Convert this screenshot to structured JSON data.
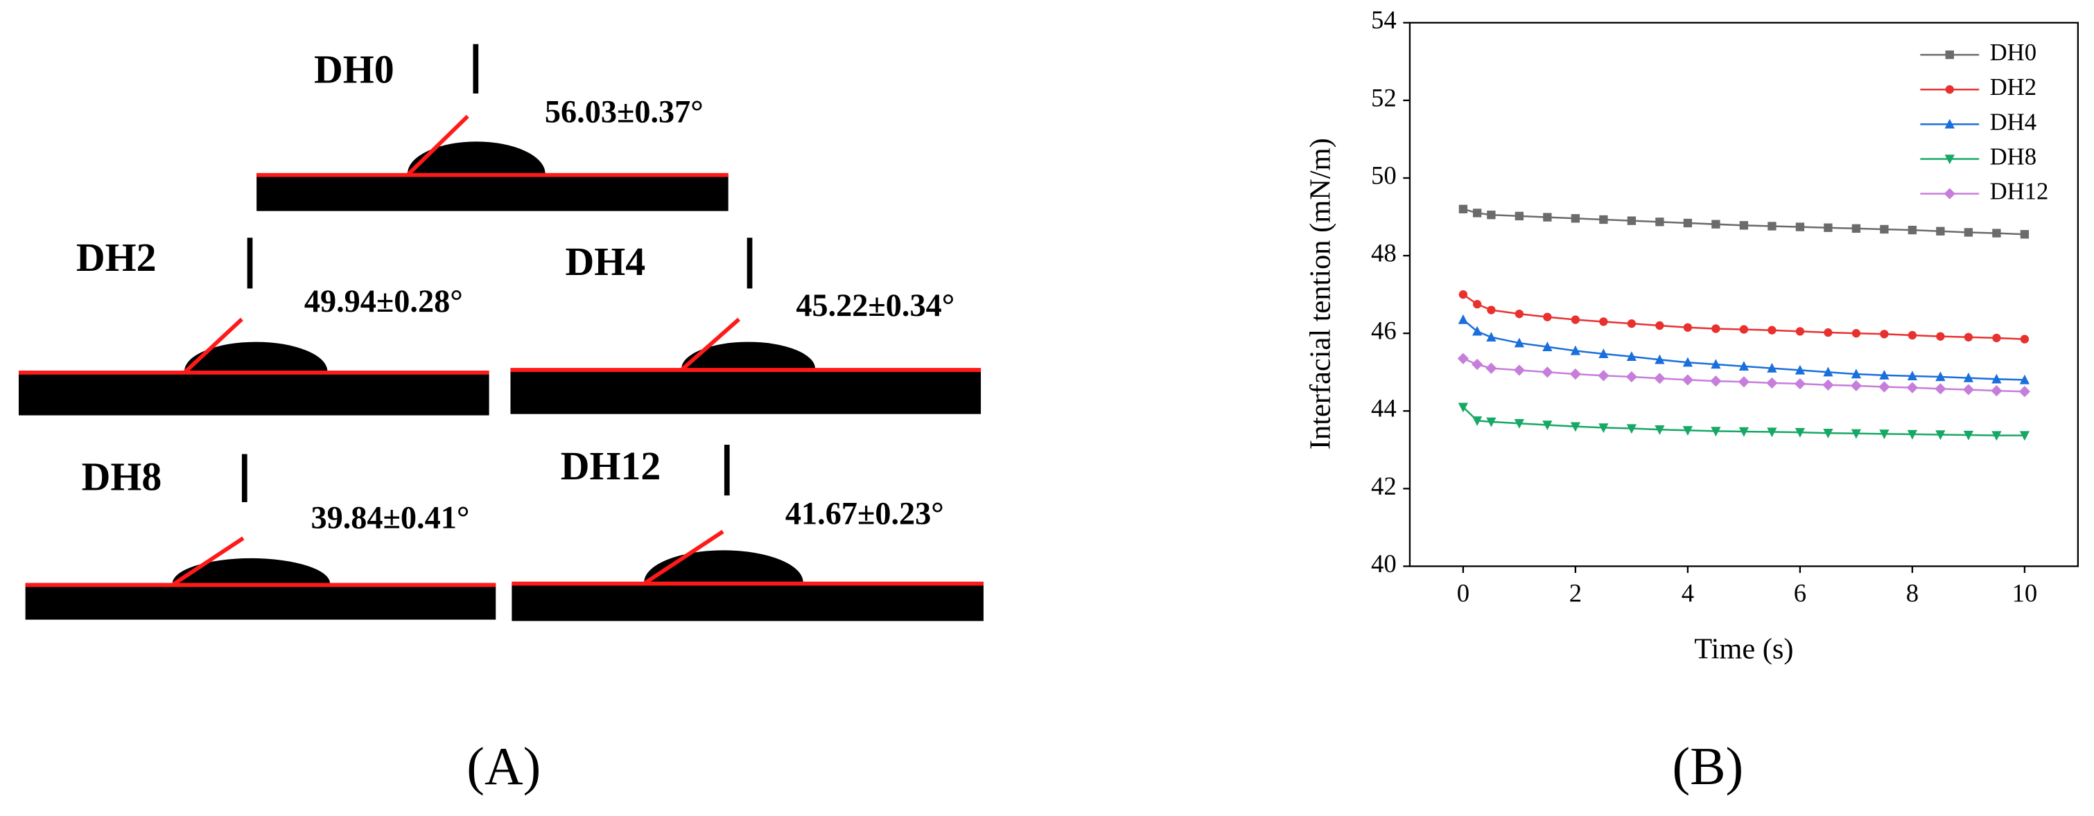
{
  "panel_a": {
    "label": "(A)",
    "samples": [
      {
        "name": "DH0",
        "angle": "56.03±0.37°"
      },
      {
        "name": "DH2",
        "angle": "49.94±0.28°"
      },
      {
        "name": "DH4",
        "angle": "45.22±0.34°"
      },
      {
        "name": "DH8",
        "angle": "39.84±0.41°"
      },
      {
        "name": "DH12",
        "angle": "41.67±0.23°"
      }
    ]
  },
  "panel_b_label": "(B)",
  "chart_data": {
    "type": "line",
    "x_label": "Time (s)",
    "y_label": "Interfacial tention (mN/m)",
    "x": [
      0,
      0.25,
      0.5,
      1,
      1.5,
      2,
      2.5,
      3,
      3.5,
      4,
      4.5,
      5,
      5.5,
      6,
      6.5,
      7,
      7.5,
      8,
      8.5,
      9,
      9.5,
      10
    ],
    "series": [
      {
        "name": "DH0",
        "color": "#6b6b6b",
        "marker": "square",
        "values": [
          49.2,
          49.1,
          49.05,
          49.02,
          48.99,
          48.96,
          48.93,
          48.9,
          48.87,
          48.84,
          48.81,
          48.78,
          48.76,
          48.74,
          48.72,
          48.7,
          48.68,
          48.66,
          48.63,
          48.6,
          48.58,
          48.55
        ]
      },
      {
        "name": "DH2",
        "color": "#e8312f",
        "marker": "circle",
        "values": [
          47.0,
          46.75,
          46.6,
          46.5,
          46.42,
          46.35,
          46.3,
          46.25,
          46.2,
          46.15,
          46.12,
          46.1,
          46.08,
          46.05,
          46.02,
          46.0,
          45.98,
          45.95,
          45.92,
          45.9,
          45.88,
          45.85
        ]
      },
      {
        "name": "DH4",
        "color": "#1a6fdc",
        "marker": "triangle-up",
        "values": [
          46.35,
          46.05,
          45.9,
          45.75,
          45.65,
          45.55,
          45.47,
          45.4,
          45.32,
          45.25,
          45.2,
          45.15,
          45.1,
          45.05,
          45.0,
          44.95,
          44.92,
          44.9,
          44.88,
          44.85,
          44.82,
          44.8
        ]
      },
      {
        "name": "DH8",
        "color": "#17a866",
        "marker": "triangle-down",
        "values": [
          44.1,
          43.75,
          43.72,
          43.68,
          43.64,
          43.6,
          43.57,
          43.55,
          43.52,
          43.5,
          43.48,
          43.47,
          43.46,
          43.45,
          43.43,
          43.42,
          43.41,
          43.4,
          43.39,
          43.38,
          43.37,
          43.37
        ]
      },
      {
        "name": "DH12",
        "color": "#c77ddb",
        "marker": "diamond",
        "values": [
          45.35,
          45.2,
          45.1,
          45.05,
          45.0,
          44.95,
          44.91,
          44.88,
          44.84,
          44.8,
          44.77,
          44.75,
          44.72,
          44.7,
          44.67,
          44.65,
          44.62,
          44.6,
          44.57,
          44.55,
          44.52,
          44.5
        ]
      }
    ],
    "xlim": [
      -0.95,
      10.95
    ],
    "ylim": [
      40,
      54
    ],
    "xticks": [
      0,
      2,
      4,
      6,
      8,
      10
    ],
    "yticks": [
      40,
      42,
      44,
      46,
      48,
      50,
      52,
      54
    ],
    "grid": false,
    "legend": "upper-right"
  }
}
